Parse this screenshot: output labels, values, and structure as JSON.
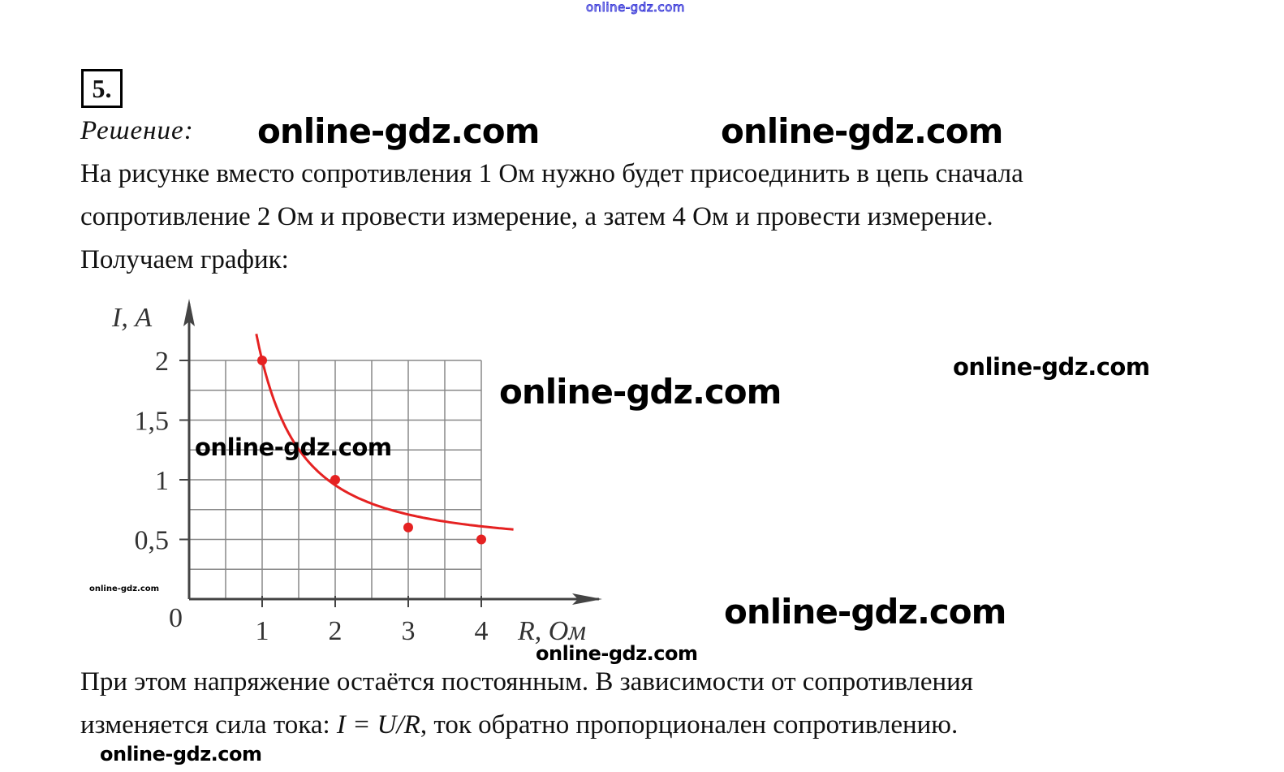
{
  "watermark": "online-gdz.com",
  "task_number": "5.",
  "solution_label": "Решение:",
  "paragraph1_line1": "На рисунке вместо сопротивления 1 Ом нужно будет присоединить в цепь сначала",
  "paragraph1_line2": "сопротивление 2 Ом и провести измерение, а затем 4 Ом и провести измерение.",
  "paragraph1_line3": "Получаем график:",
  "paragraph2_line1": "При этом напряжение остаётся постоянным. В зависимости от сопротивления",
  "paragraph2_line2_a": "изменяется сила тока: ",
  "paragraph2_formula": "I = U/R",
  "paragraph2_line2_b": ", ток обратно пропорционален сопротивлению.",
  "chart_data": {
    "type": "line",
    "xlabel": "R, Ом",
    "ylabel": "I, А",
    "origin_label": "0",
    "x_ticks": [
      "1",
      "2",
      "3",
      "4"
    ],
    "y_ticks": [
      "0,5",
      "1",
      "1,5",
      "2"
    ],
    "xlim": [
      0,
      4.5
    ],
    "ylim": [
      0,
      2.3
    ],
    "grid": true,
    "points": [
      {
        "x": 1,
        "y": 2
      },
      {
        "x": 2,
        "y": 1
      },
      {
        "x": 3,
        "y": 0.6
      },
      {
        "x": 4,
        "y": 0.5
      }
    ],
    "curve_color": "#e52222"
  }
}
